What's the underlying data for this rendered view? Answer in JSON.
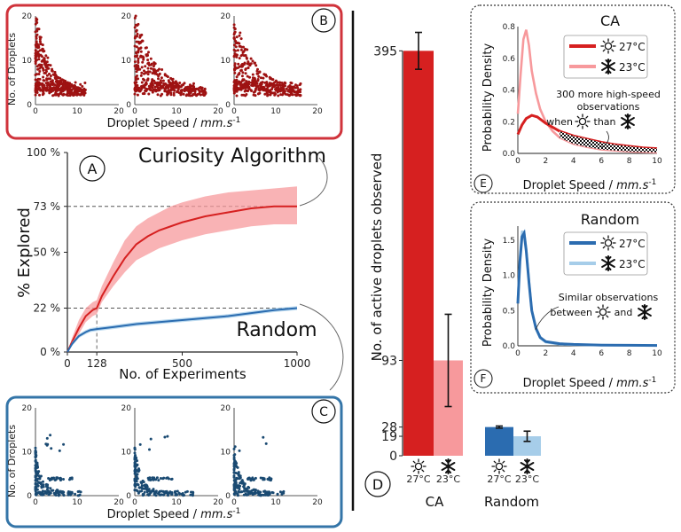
{
  "figure": {
    "panel_letters": [
      "A",
      "B",
      "C",
      "D",
      "E",
      "F"
    ]
  },
  "colors": {
    "ca_dark": "#d62020",
    "ca_light": "#f7999c",
    "random_dark": "#2b6cb0",
    "random_light": "#a6cde9",
    "scatter_red": "#9e1212",
    "scatter_blue": "#1a4a72",
    "box_red": "#d0333b",
    "box_blue": "#3475a8"
  },
  "chart_data": [
    {
      "id": "A",
      "type": "line",
      "title": "",
      "xlabel": "No. of Experiments",
      "ylabel": "% Explored",
      "xlim": [
        0,
        1000
      ],
      "ylim": [
        0,
        100
      ],
      "x_ticks": [
        "0",
        "128",
        "500",
        "1000"
      ],
      "y_ticks": [
        "0 %",
        "22 %",
        "50 %",
        "73 %",
        "100 %"
      ],
      "reference_lines": [
        {
          "y": 73,
          "label": "73 %"
        },
        {
          "y": 22,
          "label": "22 %"
        },
        {
          "x": 128,
          "y": 22
        }
      ],
      "series": [
        {
          "name": "Curiosity Algorithm",
          "x": [
            0,
            20,
            50,
            80,
            110,
            128,
            150,
            200,
            250,
            300,
            350,
            400,
            450,
            500,
            600,
            700,
            800,
            900,
            1000
          ],
          "values": [
            0,
            5,
            12,
            18,
            21,
            22,
            28,
            38,
            47,
            54,
            58,
            61,
            63,
            65,
            68,
            70,
            72,
            73,
            73
          ],
          "lower": [
            0,
            4,
            9,
            15,
            18,
            19,
            25,
            33,
            40,
            46,
            49,
            52,
            54,
            56,
            59,
            61,
            63,
            64,
            64
          ],
          "upper": [
            0,
            7,
            16,
            22,
            25,
            26,
            33,
            45,
            56,
            63,
            67,
            70,
            73,
            75,
            78,
            80,
            81,
            82,
            83
          ]
        },
        {
          "name": "Random",
          "x": [
            0,
            20,
            50,
            80,
            100,
            128,
            200,
            300,
            400,
            500,
            600,
            700,
            800,
            900,
            1000
          ],
          "values": [
            0,
            4,
            8,
            10,
            11,
            11.5,
            12.5,
            14,
            15,
            16,
            17,
            18,
            19.5,
            21,
            22
          ],
          "lower": [
            0,
            3,
            7,
            9,
            10,
            10.5,
            11.5,
            13,
            14,
            15,
            16,
            17,
            18.5,
            20,
            21
          ],
          "upper": [
            0,
            5,
            9,
            11,
            12,
            12.5,
            13.5,
            15,
            16,
            17,
            18,
            19,
            20.5,
            22,
            23
          ]
        }
      ],
      "labels": {
        "curiosity": "Curiosity Algorithm",
        "random": "Random"
      }
    },
    {
      "id": "B",
      "type": "scatter",
      "xlabel": "Droplet Speed / ",
      "xlabel_unit": "mm.s",
      "xlabel_exp": "-1",
      "ylabel": "No. of Droplets",
      "xlim": [
        0,
        20
      ],
      "ylim": [
        0,
        20
      ],
      "x_ticks": [
        "0",
        "10",
        "20"
      ],
      "y_ticks": [
        "0",
        "10",
        "20"
      ],
      "subplots": 3,
      "description": "Curiosity algorithm scatter (red)"
    },
    {
      "id": "C",
      "type": "scatter",
      "xlabel": "Droplet Speed / ",
      "xlabel_unit": "mm.s",
      "xlabel_exp": "-1",
      "ylabel": "No. of Droplets",
      "xlim": [
        0,
        20
      ],
      "ylim": [
        0,
        20
      ],
      "x_ticks": [
        "0",
        "10",
        "20"
      ],
      "y_ticks": [
        "0",
        "10",
        "20"
      ],
      "subplots": 3,
      "description": "Random scatter (blue)"
    },
    {
      "id": "D",
      "type": "bar",
      "ylabel": "No. of active droplets observed",
      "ylim": [
        0,
        410
      ],
      "y_ticks": [
        "0",
        "19",
        "28",
        "93",
        "395"
      ],
      "groups": [
        "CA",
        "Random"
      ],
      "bar_labels": [
        "27°C",
        "23°C"
      ],
      "series": [
        {
          "name": "27°C",
          "values": [
            395,
            28
          ],
          "err": [
            18,
            1
          ]
        },
        {
          "name": "23°C",
          "values": [
            93,
            19
          ],
          "err": [
            45,
            5
          ]
        }
      ]
    },
    {
      "id": "E",
      "type": "line",
      "title": "CA",
      "xlabel": "Droplet Speed / ",
      "xlabel_unit": "mm.s",
      "xlabel_exp": "-1",
      "ylabel": "Probability Density",
      "xlim": [
        0,
        10
      ],
      "ylim": [
        0,
        0.8
      ],
      "x_ticks": [
        "0",
        "2",
        "4",
        "6",
        "8",
        "10"
      ],
      "y_ticks": [
        "0.0",
        "0.2",
        "0.4",
        "0.6",
        "0.8"
      ],
      "legend": [
        "27°C",
        "23°C"
      ],
      "annotation": [
        "300 more high-speed",
        "observations",
        "when",
        "than"
      ],
      "series": [
        {
          "name": "27°C",
          "x": [
            0,
            0.3,
            0.6,
            1.0,
            1.4,
            2.0,
            3.0,
            4.0,
            5.0,
            6.0,
            7.0,
            8.0,
            9.0,
            10.0
          ],
          "values": [
            0.12,
            0.18,
            0.22,
            0.24,
            0.23,
            0.19,
            0.14,
            0.11,
            0.09,
            0.07,
            0.055,
            0.045,
            0.035,
            0.03
          ]
        },
        {
          "name": "23°C",
          "x": [
            0,
            0.2,
            0.4,
            0.6,
            0.8,
            1.0,
            1.3,
            1.6,
            2.0,
            2.5,
            3.0,
            4.0,
            5.0,
            6.0,
            8.0,
            10.0
          ],
          "values": [
            0.25,
            0.5,
            0.72,
            0.78,
            0.68,
            0.52,
            0.38,
            0.28,
            0.2,
            0.14,
            0.1,
            0.06,
            0.04,
            0.025,
            0.012,
            0.006
          ]
        }
      ]
    },
    {
      "id": "F",
      "type": "line",
      "title": "Random",
      "xlabel": "Droplet Speed / ",
      "xlabel_unit": "mm.s",
      "xlabel_exp": "-1",
      "ylabel": "Probability Density",
      "xlim": [
        0,
        10
      ],
      "ylim": [
        0,
        1.7
      ],
      "x_ticks": [
        "0",
        "2",
        "4",
        "6",
        "8",
        "10"
      ],
      "y_ticks": [
        "0.0",
        "0.5",
        "1.0",
        "1.5"
      ],
      "legend": [
        "27°C",
        "23°C"
      ],
      "annotation": [
        "Similar observations",
        "between",
        "and"
      ],
      "series": [
        {
          "name": "27°C",
          "x": [
            0,
            0.15,
            0.3,
            0.45,
            0.6,
            0.8,
            1.0,
            1.3,
            1.6,
            2.0,
            3.0,
            4.0,
            6.0,
            8.0,
            10.0
          ],
          "values": [
            0.6,
            1.2,
            1.55,
            1.6,
            1.35,
            0.9,
            0.5,
            0.25,
            0.12,
            0.06,
            0.03,
            0.02,
            0.01,
            0.008,
            0.005
          ]
        },
        {
          "name": "23°C",
          "x": [
            0,
            0.15,
            0.3,
            0.45,
            0.6,
            0.8,
            1.0,
            1.3,
            1.6,
            2.0,
            3.0,
            4.0,
            6.0,
            8.0,
            10.0
          ],
          "values": [
            0.65,
            1.25,
            1.62,
            1.62,
            1.38,
            0.92,
            0.5,
            0.24,
            0.11,
            0.05,
            0.02,
            0.015,
            0.01,
            0.007,
            0.005
          ]
        }
      ]
    }
  ]
}
